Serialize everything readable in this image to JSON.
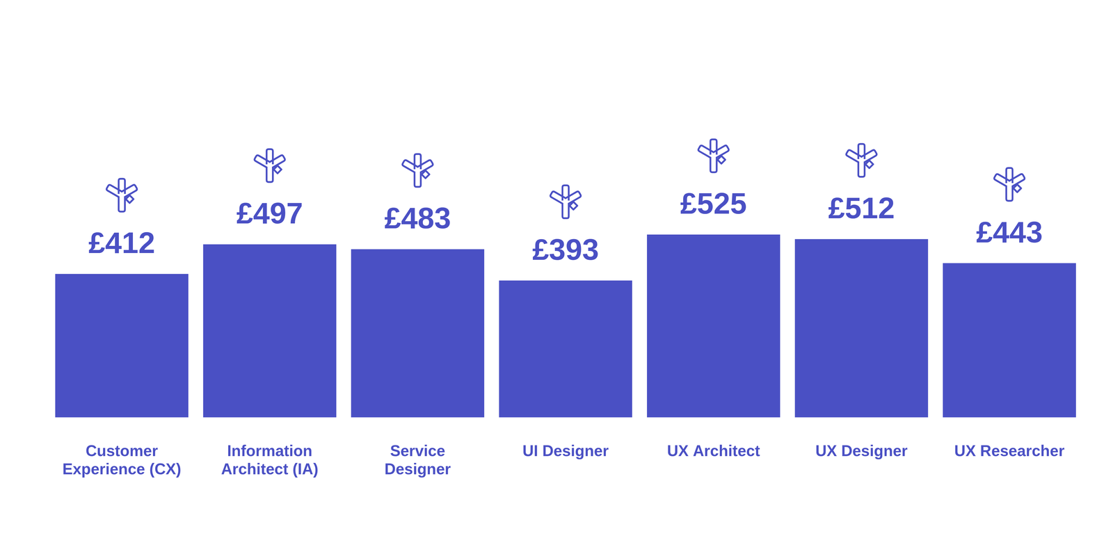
{
  "chart_data": {
    "type": "bar",
    "categories": [
      "Customer Experience (CX)",
      "Information Architect (IA)",
      "Service Designer",
      "UI Designer",
      "UX Architect",
      "UX Designer",
      "UX Researcher"
    ],
    "values": [
      412,
      497,
      483,
      393,
      525,
      512,
      443
    ],
    "value_labels": [
      "£412",
      "£497",
      "£483",
      "£393",
      "£525",
      "£512",
      "£443"
    ],
    "color": "#4a50c4",
    "ylim": [
      0,
      525
    ],
    "grid": false,
    "data_labels": true,
    "tick_labels": "x"
  }
}
